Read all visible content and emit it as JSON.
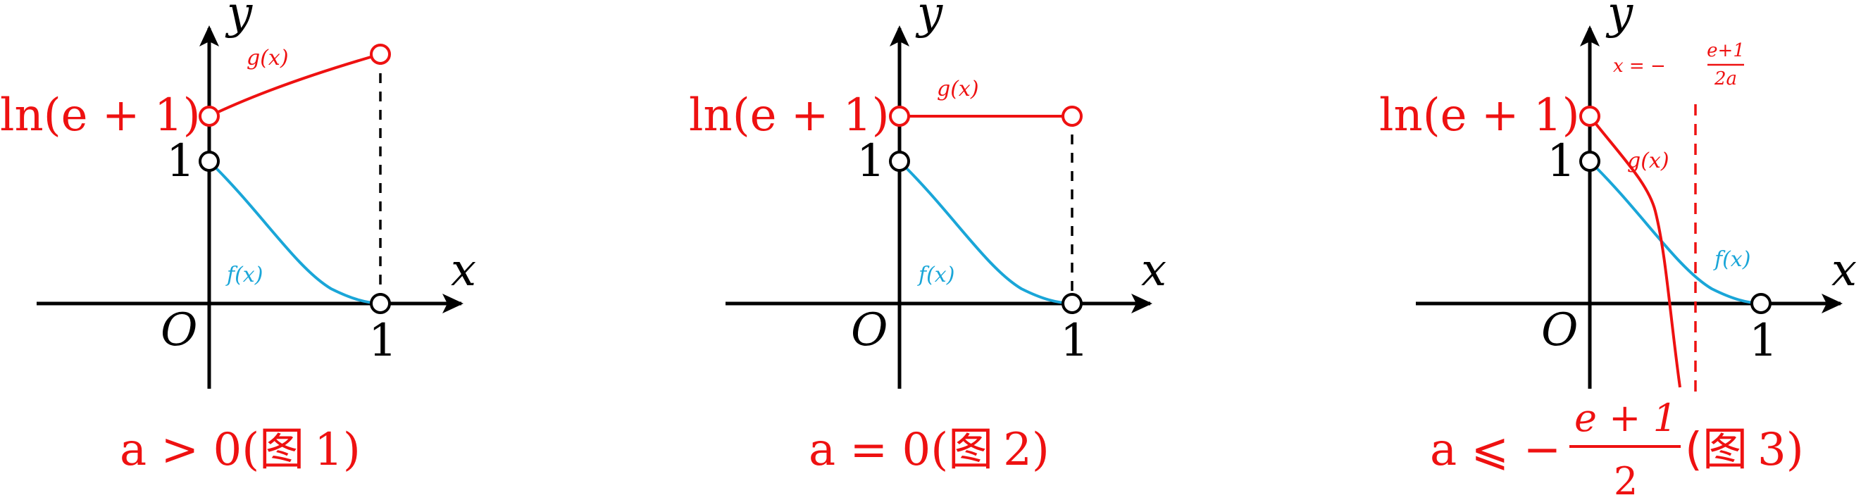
{
  "colors": {
    "axis": "#000000",
    "red": "#ee1111",
    "blue": "#1aa6d8",
    "ring": "#000000"
  },
  "panels": [
    {
      "axis_y": "y",
      "axis_x": "x",
      "origin": "O",
      "y_tick": "1",
      "x_tick": "1",
      "ln_label": "ln(e + 1)",
      "g_label": "g(x)",
      "f_label": "f(x)",
      "caption_prefix": "a > 0(",
      "caption_cn": "图",
      "caption_num": "1)",
      "g_kind": "increasing"
    },
    {
      "axis_y": "y",
      "axis_x": "x",
      "origin": "O",
      "y_tick": "1",
      "x_tick": "1",
      "ln_label": "ln(e + 1)",
      "g_label": "g(x)",
      "f_label": "f(x)",
      "caption_prefix": "a = 0(",
      "caption_cn": "图",
      "caption_num": "2)",
      "g_kind": "constant"
    },
    {
      "axis_y": "y",
      "axis_x": "x",
      "origin": "O",
      "y_tick": "1",
      "x_tick": "1",
      "ln_label": "ln(e + 1)",
      "g_label": "g(x)",
      "f_label": "f(x)",
      "asymptote_label_prefix": "x = −",
      "asymptote_num": "e+1",
      "asymptote_den": "2a",
      "caption_prefix": "a ⩽ −",
      "caption_frac_num": "e + 1",
      "caption_frac_den": "2",
      "caption_cn": "(图",
      "caption_num": "3)",
      "g_kind": "decreasing"
    }
  ]
}
